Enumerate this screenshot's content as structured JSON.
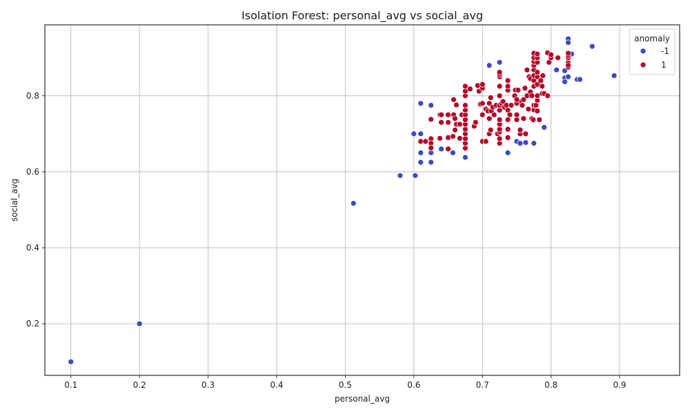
{
  "chart_data": {
    "type": "scatter",
    "title": "Isolation Forest: personal_avg vs social_avg",
    "xlabel": "personal_avg",
    "ylabel": "social_avg",
    "xlim": [
      0.062,
      0.9875
    ],
    "ylim": [
      0.0642,
      0.9867
    ],
    "xticks": [
      0.1,
      0.2,
      0.3,
      0.4,
      0.5,
      0.6,
      0.7,
      0.8,
      0.9
    ],
    "xtick_labels": [
      "0.1",
      "0.2",
      "0.3",
      "0.4",
      "0.5",
      "0.6",
      "0.7",
      "0.8",
      "0.9"
    ],
    "yticks": [
      0.2,
      0.4,
      0.6,
      0.8
    ],
    "ytick_labels": [
      "0.2",
      "0.4",
      "0.6",
      "0.8"
    ],
    "grid": true,
    "legend": {
      "title": "anomaly",
      "placement": "top-right",
      "entries": [
        {
          "label": "-1",
          "color": "#3b4cc0"
        },
        {
          "label": "1",
          "color": "#b40426"
        }
      ]
    },
    "series": [
      {
        "name": "-1",
        "color": "#3b4cc0",
        "points": [
          [
            0.1,
            0.1
          ],
          [
            0.2,
            0.2
          ],
          [
            0.512,
            0.517
          ],
          [
            0.58,
            0.59
          ],
          [
            0.602,
            0.59
          ],
          [
            0.6,
            0.7
          ],
          [
            0.61,
            0.7
          ],
          [
            0.61,
            0.65
          ],
          [
            0.61,
            0.625
          ],
          [
            0.625,
            0.625
          ],
          [
            0.625,
            0.65
          ],
          [
            0.61,
            0.78
          ],
          [
            0.625,
            0.775
          ],
          [
            0.64,
            0.66
          ],
          [
            0.657,
            0.65
          ],
          [
            0.675,
            0.638
          ],
          [
            0.71,
            0.88
          ],
          [
            0.725,
            0.888
          ],
          [
            0.737,
            0.65
          ],
          [
            0.75,
            0.68
          ],
          [
            0.755,
            0.675
          ],
          [
            0.763,
            0.677
          ],
          [
            0.775,
            0.675
          ],
          [
            0.79,
            0.717
          ],
          [
            0.808,
            0.868
          ],
          [
            0.82,
            0.866
          ],
          [
            0.82,
            0.847
          ],
          [
            0.82,
            0.837
          ],
          [
            0.825,
            0.85
          ],
          [
            0.825,
            0.95
          ],
          [
            0.825,
            0.94
          ],
          [
            0.83,
            0.91
          ],
          [
            0.838,
            0.843
          ],
          [
            0.842,
            0.843
          ],
          [
            0.86,
            0.93
          ],
          [
            0.892,
            0.853
          ]
        ]
      },
      {
        "name": "1",
        "color": "#b40426",
        "points": [
          [
            0.61,
            0.68
          ],
          [
            0.617,
            0.68
          ],
          [
            0.625,
            0.687
          ],
          [
            0.625,
            0.675
          ],
          [
            0.625,
            0.663
          ],
          [
            0.625,
            0.738
          ],
          [
            0.638,
            0.688
          ],
          [
            0.638,
            0.75
          ],
          [
            0.64,
            0.73
          ],
          [
            0.64,
            0.75
          ],
          [
            0.65,
            0.69
          ],
          [
            0.65,
            0.66
          ],
          [
            0.65,
            0.73
          ],
          [
            0.65,
            0.75
          ],
          [
            0.657,
            0.693
          ],
          [
            0.658,
            0.75
          ],
          [
            0.658,
            0.79
          ],
          [
            0.66,
            0.71
          ],
          [
            0.66,
            0.74
          ],
          [
            0.662,
            0.776
          ],
          [
            0.662,
            0.725
          ],
          [
            0.667,
            0.688
          ],
          [
            0.667,
            0.725
          ],
          [
            0.67,
            0.75
          ],
          [
            0.675,
            0.662
          ],
          [
            0.675,
            0.675
          ],
          [
            0.675,
            0.687
          ],
          [
            0.675,
            0.7
          ],
          [
            0.675,
            0.712
          ],
          [
            0.675,
            0.725
          ],
          [
            0.675,
            0.737
          ],
          [
            0.675,
            0.75
          ],
          [
            0.675,
            0.762
          ],
          [
            0.675,
            0.775
          ],
          [
            0.675,
            0.8
          ],
          [
            0.675,
            0.812
          ],
          [
            0.675,
            0.825
          ],
          [
            0.682,
            0.818
          ],
          [
            0.688,
            0.72
          ],
          [
            0.69,
            0.73
          ],
          [
            0.693,
            0.827
          ],
          [
            0.695,
            0.812
          ],
          [
            0.697,
            0.778
          ],
          [
            0.7,
            0.78
          ],
          [
            0.7,
            0.82
          ],
          [
            0.7,
            0.83
          ],
          [
            0.7,
            0.75
          ],
          [
            0.7,
            0.68
          ],
          [
            0.705,
            0.68
          ],
          [
            0.705,
            0.765
          ],
          [
            0.708,
            0.76
          ],
          [
            0.71,
            0.74
          ],
          [
            0.71,
            0.7
          ],
          [
            0.71,
            0.78
          ],
          [
            0.712,
            0.795
          ],
          [
            0.712,
            0.71
          ],
          [
            0.713,
            0.76
          ],
          [
            0.715,
            0.77
          ],
          [
            0.717,
            0.75
          ],
          [
            0.72,
            0.775
          ],
          [
            0.722,
            0.7
          ],
          [
            0.725,
            0.705
          ],
          [
            0.725,
            0.675
          ],
          [
            0.725,
            0.687
          ],
          [
            0.725,
            0.712
          ],
          [
            0.725,
            0.725
          ],
          [
            0.725,
            0.737
          ],
          [
            0.725,
            0.762
          ],
          [
            0.725,
            0.775
          ],
          [
            0.725,
            0.8
          ],
          [
            0.725,
            0.825
          ],
          [
            0.725,
            0.85
          ],
          [
            0.725,
            0.856
          ],
          [
            0.725,
            0.862
          ],
          [
            0.728,
            0.78
          ],
          [
            0.73,
            0.785
          ],
          [
            0.732,
            0.77
          ],
          [
            0.735,
            0.775
          ],
          [
            0.737,
            0.69
          ],
          [
            0.737,
            0.712
          ],
          [
            0.737,
            0.737
          ],
          [
            0.737,
            0.762
          ],
          [
            0.737,
            0.815
          ],
          [
            0.737,
            0.825
          ],
          [
            0.737,
            0.84
          ],
          [
            0.74,
            0.75
          ],
          [
            0.742,
            0.775
          ],
          [
            0.747,
            0.8
          ],
          [
            0.748,
            0.815
          ],
          [
            0.75,
            0.737
          ],
          [
            0.75,
            0.75
          ],
          [
            0.75,
            0.78
          ],
          [
            0.75,
            0.79
          ],
          [
            0.752,
            0.815
          ],
          [
            0.755,
            0.7
          ],
          [
            0.755,
            0.71
          ],
          [
            0.757,
            0.785
          ],
          [
            0.758,
            0.775
          ],
          [
            0.76,
            0.74
          ],
          [
            0.76,
            0.79
          ],
          [
            0.762,
            0.82
          ],
          [
            0.763,
            0.7
          ],
          [
            0.765,
            0.868
          ],
          [
            0.765,
            0.8
          ],
          [
            0.767,
            0.765
          ],
          [
            0.768,
            0.85
          ],
          [
            0.77,
            0.845
          ],
          [
            0.77,
            0.81
          ],
          [
            0.772,
            0.8
          ],
          [
            0.772,
            0.74
          ],
          [
            0.774,
            0.737
          ],
          [
            0.775,
            0.763
          ],
          [
            0.775,
            0.775
          ],
          [
            0.775,
            0.825
          ],
          [
            0.775,
            0.84
          ],
          [
            0.775,
            0.853
          ],
          [
            0.775,
            0.868
          ],
          [
            0.775,
            0.88
          ],
          [
            0.775,
            0.89
          ],
          [
            0.775,
            0.9
          ],
          [
            0.775,
            0.912
          ],
          [
            0.778,
            0.775
          ],
          [
            0.78,
            0.76
          ],
          [
            0.78,
            0.788
          ],
          [
            0.78,
            0.8
          ],
          [
            0.78,
            0.83
          ],
          [
            0.78,
            0.85
          ],
          [
            0.78,
            0.862
          ],
          [
            0.78,
            0.888
          ],
          [
            0.78,
            0.9
          ],
          [
            0.78,
            0.91
          ],
          [
            0.783,
            0.737
          ],
          [
            0.785,
            0.84
          ],
          [
            0.787,
            0.806
          ],
          [
            0.787,
            0.825
          ],
          [
            0.788,
            0.853
          ],
          [
            0.79,
            0.806
          ],
          [
            0.795,
            0.8
          ],
          [
            0.795,
            0.913
          ],
          [
            0.797,
            0.888
          ],
          [
            0.8,
            0.9
          ],
          [
            0.8,
            0.908
          ],
          [
            0.81,
            0.9
          ],
          [
            0.825,
            0.875
          ],
          [
            0.825,
            0.887
          ],
          [
            0.825,
            0.9
          ],
          [
            0.825,
            0.906
          ],
          [
            0.825,
            0.912
          ],
          [
            0.825,
            0.88
          ]
        ]
      }
    ]
  }
}
